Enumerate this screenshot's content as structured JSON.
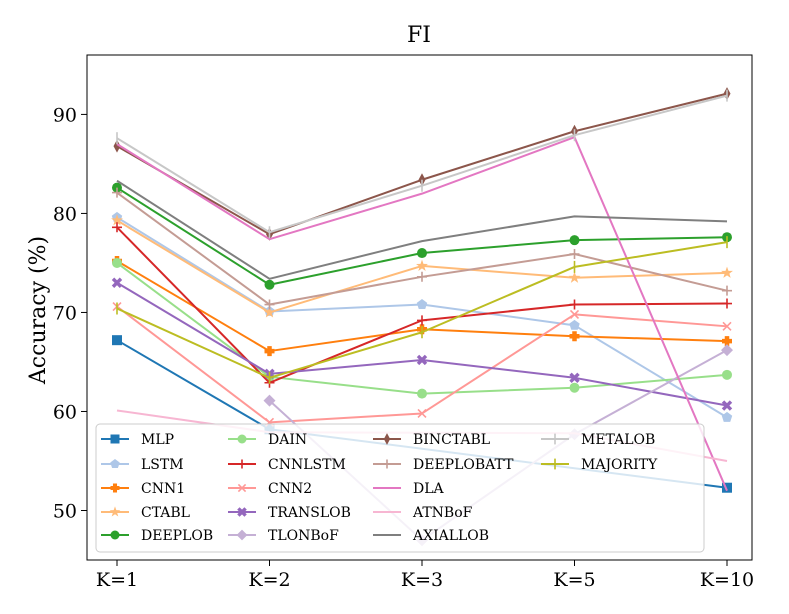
{
  "chart_data": {
    "type": "line",
    "title": "FI",
    "xlabel": "",
    "ylabel": "Accuracy (%)",
    "categories": [
      "K=1",
      "K=2",
      "K=3",
      "K=5",
      "K=10"
    ],
    "ylim": [
      45,
      96
    ],
    "yticks": [
      50,
      60,
      70,
      80,
      90
    ],
    "legend_position": "lower-center",
    "series": [
      {
        "name": "MLP",
        "color": "#1f77b4",
        "marker": "square",
        "values": [
          67.2,
          58.2,
          null,
          null,
          52.3
        ]
      },
      {
        "name": "LSTM",
        "color": "#aec7e8",
        "marker": "pentagon",
        "values": [
          79.6,
          70.1,
          70.8,
          68.7,
          59.4
        ]
      },
      {
        "name": "CNN1",
        "color": "#ff7f0e",
        "marker": "plus-filled",
        "values": [
          75.2,
          66.1,
          68.3,
          67.6,
          67.1
        ]
      },
      {
        "name": "CTABL",
        "color": "#ffbb78",
        "marker": "star",
        "values": [
          79.3,
          70.0,
          74.7,
          73.5,
          74.0
        ]
      },
      {
        "name": "DEEPLOB",
        "color": "#2ca02c",
        "marker": "circle",
        "values": [
          82.6,
          72.8,
          76.0,
          77.3,
          77.6
        ]
      },
      {
        "name": "DAIN",
        "color": "#98df8a",
        "marker": "circle",
        "values": [
          75.0,
          63.5,
          61.8,
          62.4,
          63.7
        ]
      },
      {
        "name": "CNNLSTM",
        "color": "#d62728",
        "marker": "plus",
        "values": [
          78.6,
          62.9,
          69.2,
          70.8,
          70.9
        ]
      },
      {
        "name": "CNN2",
        "color": "#ff9896",
        "marker": "x",
        "values": [
          70.6,
          58.9,
          59.8,
          69.8,
          68.6
        ]
      },
      {
        "name": "TRANSLOB",
        "color": "#9467bd",
        "marker": "x-filled",
        "values": [
          73.0,
          63.8,
          65.2,
          63.4,
          60.6
        ]
      },
      {
        "name": "TLONBoF",
        "color": "#c5b0d5",
        "marker": "diamond",
        "values": [
          null,
          61.1,
          47.0,
          57.7,
          66.2
        ]
      },
      {
        "name": "BINCTABL",
        "color": "#8c564b",
        "marker": "thin-diamond",
        "values": [
          86.8,
          77.9,
          83.4,
          88.3,
          92.1
        ]
      },
      {
        "name": "DEEPLOBATT",
        "color": "#c49c94",
        "marker": "plus",
        "values": [
          82.1,
          70.8,
          73.6,
          75.9,
          72.2
        ]
      },
      {
        "name": "DLA",
        "color": "#e377c2",
        "marker": "none",
        "values": [
          87.0,
          77.4,
          82.0,
          87.7,
          52.0
        ]
      },
      {
        "name": "ATNBoF",
        "color": "#f7b6d2",
        "marker": "none",
        "values": [
          60.1,
          57.9,
          null,
          57.8,
          55.0
        ]
      },
      {
        "name": "AXIALLOB",
        "color": "#7f7f7f",
        "marker": "none",
        "values": [
          83.3,
          73.4,
          77.2,
          79.7,
          79.2
        ]
      },
      {
        "name": "METALOB",
        "color": "#c7c7c7",
        "marker": "vline",
        "values": [
          87.6,
          78.1,
          82.8,
          87.9,
          91.9
        ]
      },
      {
        "name": "MAJORITY",
        "color": "#bcbd22",
        "marker": "vline",
        "values": [
          70.4,
          63.4,
          68.0,
          74.6,
          77.1
        ]
      }
    ]
  }
}
